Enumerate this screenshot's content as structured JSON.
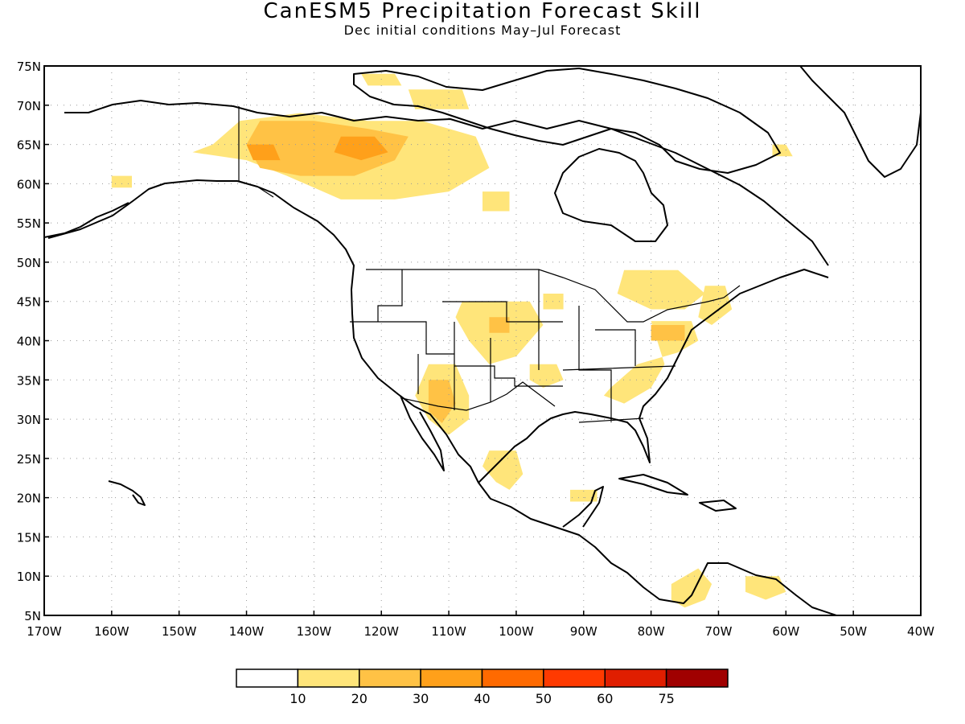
{
  "title": "CanESM5 Precipitation Forecast Skill",
  "subtitle": "Dec initial conditions  May–Jul Forecast",
  "map": {
    "lat_range": [
      5,
      75
    ],
    "lon_range": [
      -170,
      -40
    ],
    "lat_ticks": [
      {
        "value": 75,
        "label": "75N"
      },
      {
        "value": 70,
        "label": "70N"
      },
      {
        "value": 65,
        "label": "65N"
      },
      {
        "value": 60,
        "label": "60N"
      },
      {
        "value": 55,
        "label": "55N"
      },
      {
        "value": 50,
        "label": "50N"
      },
      {
        "value": 45,
        "label": "45N"
      },
      {
        "value": 40,
        "label": "40N"
      },
      {
        "value": 35,
        "label": "35N"
      },
      {
        "value": 30,
        "label": "30N"
      },
      {
        "value": 25,
        "label": "25N"
      },
      {
        "value": 20,
        "label": "20N"
      },
      {
        "value": 15,
        "label": "15N"
      },
      {
        "value": 10,
        "label": "10N"
      },
      {
        "value": 5,
        "label": "5N"
      }
    ],
    "lon_ticks": [
      {
        "value": -170,
        "label": "170W"
      },
      {
        "value": -160,
        "label": "160W"
      },
      {
        "value": -150,
        "label": "150W"
      },
      {
        "value": -140,
        "label": "140W"
      },
      {
        "value": -130,
        "label": "130W"
      },
      {
        "value": -120,
        "label": "120W"
      },
      {
        "value": -110,
        "label": "110W"
      },
      {
        "value": -100,
        "label": "100W"
      },
      {
        "value": -90,
        "label": "90W"
      },
      {
        "value": -80,
        "label": "80W"
      },
      {
        "value": -70,
        "label": "70W"
      },
      {
        "value": -60,
        "label": "60W"
      },
      {
        "value": -50,
        "label": "50W"
      },
      {
        "value": -40,
        "label": "40W"
      }
    ],
    "grid": "dotted"
  },
  "legend": {
    "colors": [
      "#ffffff",
      "#ffe57a",
      "#ffc245",
      "#ffa01a",
      "#ff6a00",
      "#ff3a00",
      "#e01e00",
      "#a00000"
    ],
    "labels": [
      "10",
      "20",
      "30",
      "40",
      "50",
      "60",
      "75"
    ]
  },
  "skill_regions": [
    {
      "level": 1,
      "points": [
        [
          -141,
          68
        ],
        [
          -132,
          69
        ],
        [
          -122,
          68
        ],
        [
          -114,
          68
        ],
        [
          -106,
          66
        ],
        [
          -104,
          62
        ],
        [
          -110,
          59
        ],
        [
          -118,
          58
        ],
        [
          -126,
          58
        ],
        [
          -134,
          61
        ],
        [
          -140,
          63
        ],
        [
          -148,
          64
        ],
        [
          -145,
          65
        ]
      ]
    },
    {
      "level": 2,
      "points": [
        [
          -138,
          68
        ],
        [
          -130,
          68
        ],
        [
          -122,
          67
        ],
        [
          -116,
          66
        ],
        [
          -118,
          63
        ],
        [
          -124,
          61
        ],
        [
          -132,
          61
        ],
        [
          -138,
          62
        ],
        [
          -140,
          65
        ]
      ]
    },
    {
      "level": 3,
      "points": [
        [
          -126,
          66
        ],
        [
          -121,
          66
        ],
        [
          -119,
          64
        ],
        [
          -123,
          63
        ],
        [
          -127,
          64
        ]
      ]
    },
    {
      "level": 3,
      "points": [
        [
          -140,
          65
        ],
        [
          -136,
          65
        ],
        [
          -135,
          63
        ],
        [
          -139,
          63
        ]
      ]
    },
    {
      "level": 1,
      "points": [
        [
          -123,
          74
        ],
        [
          -118,
          74
        ],
        [
          -117,
          72.5
        ],
        [
          -122,
          72.5
        ]
      ]
    },
    {
      "level": 1,
      "points": [
        [
          -116,
          72
        ],
        [
          -108,
          72
        ],
        [
          -107,
          69.5
        ],
        [
          -115,
          69.5
        ]
      ]
    },
    {
      "level": 1,
      "points": [
        [
          -105,
          59
        ],
        [
          -101,
          59
        ],
        [
          -101,
          56.5
        ],
        [
          -105,
          56.5
        ]
      ]
    },
    {
      "level": 1,
      "points": [
        [
          -160,
          61
        ],
        [
          -157,
          61
        ],
        [
          -157,
          59.5
        ],
        [
          -160,
          59.5
        ]
      ]
    },
    {
      "level": 1,
      "points": [
        [
          -113,
          37
        ],
        [
          -109,
          37
        ],
        [
          -107,
          33
        ],
        [
          -107,
          30
        ],
        [
          -110,
          28
        ],
        [
          -113,
          30
        ],
        [
          -115,
          33
        ]
      ]
    },
    {
      "level": 2,
      "points": [
        [
          -113,
          35
        ],
        [
          -110,
          35
        ],
        [
          -109,
          32
        ],
        [
          -111,
          29.5
        ],
        [
          -113,
          31
        ]
      ]
    },
    {
      "level": 1,
      "points": [
        [
          -108,
          45
        ],
        [
          -98,
          45
        ],
        [
          -96,
          42
        ],
        [
          -100,
          38
        ],
        [
          -104,
          37
        ],
        [
          -107,
          40
        ],
        [
          -109,
          43
        ]
      ]
    },
    {
      "level": 2,
      "points": [
        [
          -104,
          43
        ],
        [
          -101,
          43
        ],
        [
          -101,
          41
        ],
        [
          -104,
          41
        ]
      ]
    },
    {
      "level": 1,
      "points": [
        [
          -98,
          37
        ],
        [
          -94,
          37
        ],
        [
          -93,
          35
        ],
        [
          -96,
          34
        ],
        [
          -98,
          35
        ]
      ]
    },
    {
      "level": 1,
      "points": [
        [
          -96,
          46
        ],
        [
          -93,
          46
        ],
        [
          -93,
          44
        ],
        [
          -96,
          44
        ]
      ]
    },
    {
      "level": 1,
      "points": [
        [
          -84,
          49
        ],
        [
          -76,
          49
        ],
        [
          -72,
          46
        ],
        [
          -75,
          44
        ],
        [
          -80,
          44
        ],
        [
          -85,
          46
        ]
      ]
    },
    {
      "level": 1,
      "points": [
        [
          -80,
          42.5
        ],
        [
          -74,
          42.5
        ],
        [
          -73,
          40
        ],
        [
          -76,
          38.5
        ],
        [
          -82,
          37
        ],
        [
          -86,
          34
        ],
        [
          -87,
          33
        ],
        [
          -84,
          32
        ],
        [
          -80,
          34
        ],
        [
          -78,
          37
        ]
      ]
    },
    {
      "level": 2,
      "points": [
        [
          -80,
          42
        ],
        [
          -75,
          42
        ],
        [
          -75,
          40
        ],
        [
          -80,
          40
        ]
      ]
    },
    {
      "level": 1,
      "points": [
        [
          -72,
          47
        ],
        [
          -69,
          47
        ],
        [
          -68,
          44
        ],
        [
          -71,
          42
        ],
        [
          -73,
          43
        ]
      ]
    },
    {
      "level": 1,
      "points": [
        [
          -104,
          26
        ],
        [
          -100,
          26
        ],
        [
          -99,
          23
        ],
        [
          -101,
          21
        ],
        [
          -103,
          22
        ],
        [
          -105,
          24
        ]
      ]
    },
    {
      "level": 1,
      "points": [
        [
          -92,
          21
        ],
        [
          -88,
          21
        ],
        [
          -88,
          19.5
        ],
        [
          -92,
          19.5
        ]
      ]
    },
    {
      "level": 1,
      "points": [
        [
          -77,
          9
        ],
        [
          -73,
          11
        ],
        [
          -71,
          9
        ],
        [
          -72,
          7
        ],
        [
          -75,
          6
        ],
        [
          -77,
          7
        ]
      ]
    },
    {
      "level": 1,
      "points": [
        [
          -66,
          10
        ],
        [
          -61,
          10
        ],
        [
          -60,
          8
        ],
        [
          -63,
          7
        ],
        [
          -66,
          8
        ]
      ]
    },
    {
      "level": 1,
      "points": [
        [
          -62,
          65
        ],
        [
          -60,
          65
        ],
        [
          -59,
          63.5
        ],
        [
          -62,
          63.5
        ]
      ]
    }
  ]
}
